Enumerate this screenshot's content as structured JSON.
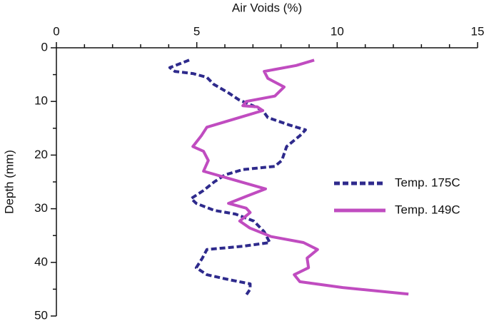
{
  "chart_data": {
    "type": "line",
    "xlabel": "Air Voids (%)",
    "ylabel": "Depth (mm)",
    "xlim": [
      0,
      15
    ],
    "xticks": [
      0,
      5,
      10,
      15
    ],
    "xminorticks": [
      1,
      2,
      3,
      4,
      6,
      7,
      8,
      9,
      11,
      12,
      13,
      14
    ],
    "ylim": [
      0,
      50
    ],
    "yticks": [
      0,
      10,
      20,
      30,
      40,
      50
    ],
    "yminorticks": [
      5,
      15,
      25,
      35,
      45
    ],
    "y_inverted": true,
    "legend": "right",
    "series": [
      {
        "name": "Temp. 175C",
        "color": "#2e2a8c",
        "style": "dashed",
        "x": [
          4.73,
          4.04,
          4.22,
          4.86,
          5.36,
          5.6,
          6.13,
          6.5,
          7.0,
          7.35,
          7.53,
          8.3,
          8.87,
          8.67,
          8.2,
          8.03,
          7.78,
          6.64,
          6.0,
          5.62,
          5.24,
          4.8,
          4.98,
          5.62,
          6.38,
          7.03,
          7.4,
          7.6,
          6.64,
          5.36,
          5.2,
          4.98,
          5.36,
          6.13,
          6.9,
          6.9,
          6.77
        ],
        "values": [
          2.3,
          3.7,
          4.4,
          4.8,
          5.5,
          6.8,
          8.4,
          9.7,
          10.8,
          11.7,
          13.0,
          14.4,
          15.3,
          16.4,
          18.4,
          21.0,
          22.1,
          22.7,
          23.7,
          25.0,
          26.6,
          28.1,
          29.0,
          30.3,
          31.0,
          32.3,
          34.3,
          36.3,
          37.0,
          37.6,
          39.2,
          41.0,
          42.3,
          43.2,
          44.0,
          45.0,
          46.0
        ]
      },
      {
        "name": "Temp. 149C",
        "color": "#c04cc0",
        "style": "solid",
        "x": [
          9.18,
          8.54,
          7.4,
          7.53,
          8.11,
          7.78,
          6.76,
          6.64,
          7.15,
          7.35,
          6.64,
          5.36,
          5.16,
          4.86,
          5.24,
          5.41,
          5.24,
          6.1,
          7.45,
          6.76,
          6.13,
          6.76,
          6.9,
          6.53,
          6.89,
          7.65,
          8.8,
          9.3,
          8.93,
          8.98,
          8.47,
          8.67,
          10.2,
          12.54
        ],
        "values": [
          2.3,
          3.3,
          4.4,
          5.7,
          7.3,
          9.0,
          10.0,
          10.8,
          11.0,
          11.7,
          12.8,
          14.8,
          16.4,
          18.4,
          19.3,
          21.0,
          23.0,
          24.3,
          26.3,
          27.7,
          29.0,
          29.9,
          30.7,
          32.3,
          33.6,
          35.2,
          36.3,
          37.6,
          39.2,
          41.0,
          42.3,
          43.6,
          44.7,
          45.9
        ]
      }
    ]
  }
}
